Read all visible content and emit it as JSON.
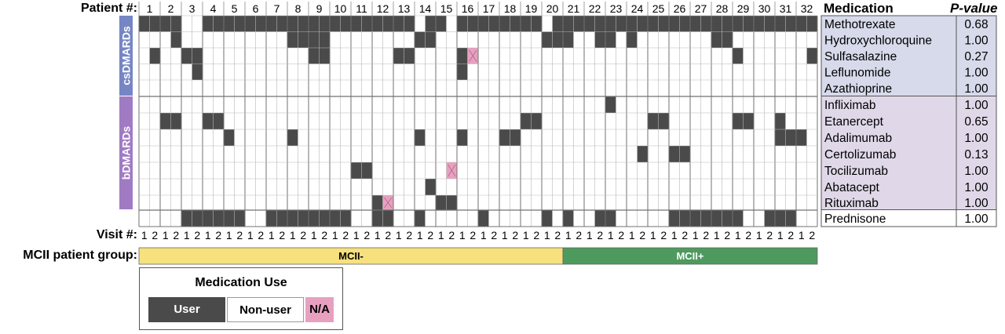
{
  "labels": {
    "patient_header": "Patient #:",
    "visit_header": "Visit #:",
    "group_header": "MCII patient group:",
    "cs_band": "csDMARDs",
    "b_band": "bDMARDs",
    "medication_col": "Medication",
    "pvalue_col": "P-value"
  },
  "legend": {
    "title": "Medication Use",
    "user": "User",
    "nonuser": "Non-user",
    "na": "N/A"
  },
  "colors": {
    "user": "#4a4a4a",
    "nonuser": "#ffffff",
    "na": "#e8a0c0",
    "mcii_minus": "#f7e07e",
    "mcii_plus": "#4e9a5e",
    "cs_band": "#7686c4",
    "b_band": "#a07bc4",
    "cs_table": "#d6daea",
    "b_table": "#e0d8e8",
    "grid": "#b8b8b8",
    "grid_major": "#707070"
  },
  "chart_data": {
    "type": "heatmap",
    "patients": [
      1,
      2,
      3,
      4,
      5,
      6,
      7,
      8,
      9,
      10,
      11,
      12,
      13,
      14,
      15,
      16,
      17,
      18,
      19,
      20,
      21,
      22,
      23,
      24,
      25,
      26,
      27,
      28,
      29,
      30,
      31,
      32
    ],
    "visits": [
      1,
      2
    ],
    "groups": [
      {
        "name": "MCII-",
        "first_patient": 1,
        "last_patient": 20
      },
      {
        "name": "MCII+",
        "first_patient": 21,
        "last_patient": 32
      }
    ],
    "medications": [
      {
        "name": "Methotrexate",
        "class": "csDMARDs",
        "p_value": "0.68",
        "user_cols": [
          1,
          2,
          3,
          4,
          7,
          8,
          9,
          10,
          11,
          12,
          13,
          14,
          15,
          16,
          17,
          18,
          19,
          20,
          21,
          22,
          23,
          24,
          25,
          26,
          28,
          29,
          31,
          32,
          33,
          34,
          35,
          36,
          37,
          38,
          40,
          41,
          42,
          43,
          44,
          45,
          46,
          47,
          48,
          49,
          50,
          51,
          52,
          53,
          54,
          55,
          56,
          57,
          58,
          59,
          60,
          61,
          62,
          63,
          64
        ],
        "na_cols": []
      },
      {
        "name": "Hydroxychloroquine",
        "class": "csDMARDs",
        "p_value": "1.00",
        "user_cols": [
          4,
          15,
          16,
          17,
          18,
          27,
          28,
          39,
          40,
          41,
          44,
          45,
          47,
          55,
          56
        ],
        "na_cols": []
      },
      {
        "name": "Sulfasalazine",
        "class": "csDMARDs",
        "p_value": "0.27",
        "user_cols": [
          2,
          5,
          6,
          17,
          18,
          25,
          26,
          31,
          57,
          64
        ],
        "na_cols": [
          32
        ]
      },
      {
        "name": "Leflunomide",
        "class": "csDMARDs",
        "p_value": "1.00",
        "user_cols": [
          6,
          31
        ],
        "na_cols": []
      },
      {
        "name": "Azathioprine",
        "class": "csDMARDs",
        "p_value": "1.00",
        "user_cols": [],
        "na_cols": []
      },
      {
        "name": "Infliximab",
        "class": "bDMARDs",
        "p_value": "1.00",
        "user_cols": [
          45
        ],
        "na_cols": []
      },
      {
        "name": "Etanercept",
        "class": "bDMARDs",
        "p_value": "0.65",
        "user_cols": [
          3,
          4,
          7,
          8,
          37,
          38,
          49,
          50,
          57,
          58,
          61
        ],
        "na_cols": []
      },
      {
        "name": "Adalimumab",
        "class": "bDMARDs",
        "p_value": "1.00",
        "user_cols": [
          9,
          15,
          27,
          31,
          35,
          36,
          61,
          62,
          63
        ],
        "na_cols": []
      },
      {
        "name": "Certolizumab",
        "class": "bDMARDs",
        "p_value": "0.13",
        "user_cols": [
          48,
          51,
          52
        ],
        "na_cols": []
      },
      {
        "name": "Tocilizumab",
        "class": "bDMARDs",
        "p_value": "1.00",
        "user_cols": [
          21,
          22
        ],
        "na_cols": [
          30
        ]
      },
      {
        "name": "Abatacept",
        "class": "bDMARDs",
        "p_value": "1.00",
        "user_cols": [
          28
        ],
        "na_cols": []
      },
      {
        "name": "Rituximab",
        "class": "bDMARDs",
        "p_value": "1.00",
        "user_cols": [
          23,
          29,
          30
        ],
        "na_cols": [
          24
        ]
      },
      {
        "name": "Prednisone",
        "class": "other",
        "p_value": "1.00",
        "user_cols": [
          5,
          6,
          7,
          8,
          9,
          10,
          13,
          14,
          15,
          16,
          17,
          18,
          19,
          20,
          23,
          24,
          27,
          33,
          39,
          41,
          44,
          45,
          51,
          52,
          53,
          54,
          55,
          56,
          57,
          60,
          61,
          62
        ],
        "na_cols": []
      }
    ]
  }
}
